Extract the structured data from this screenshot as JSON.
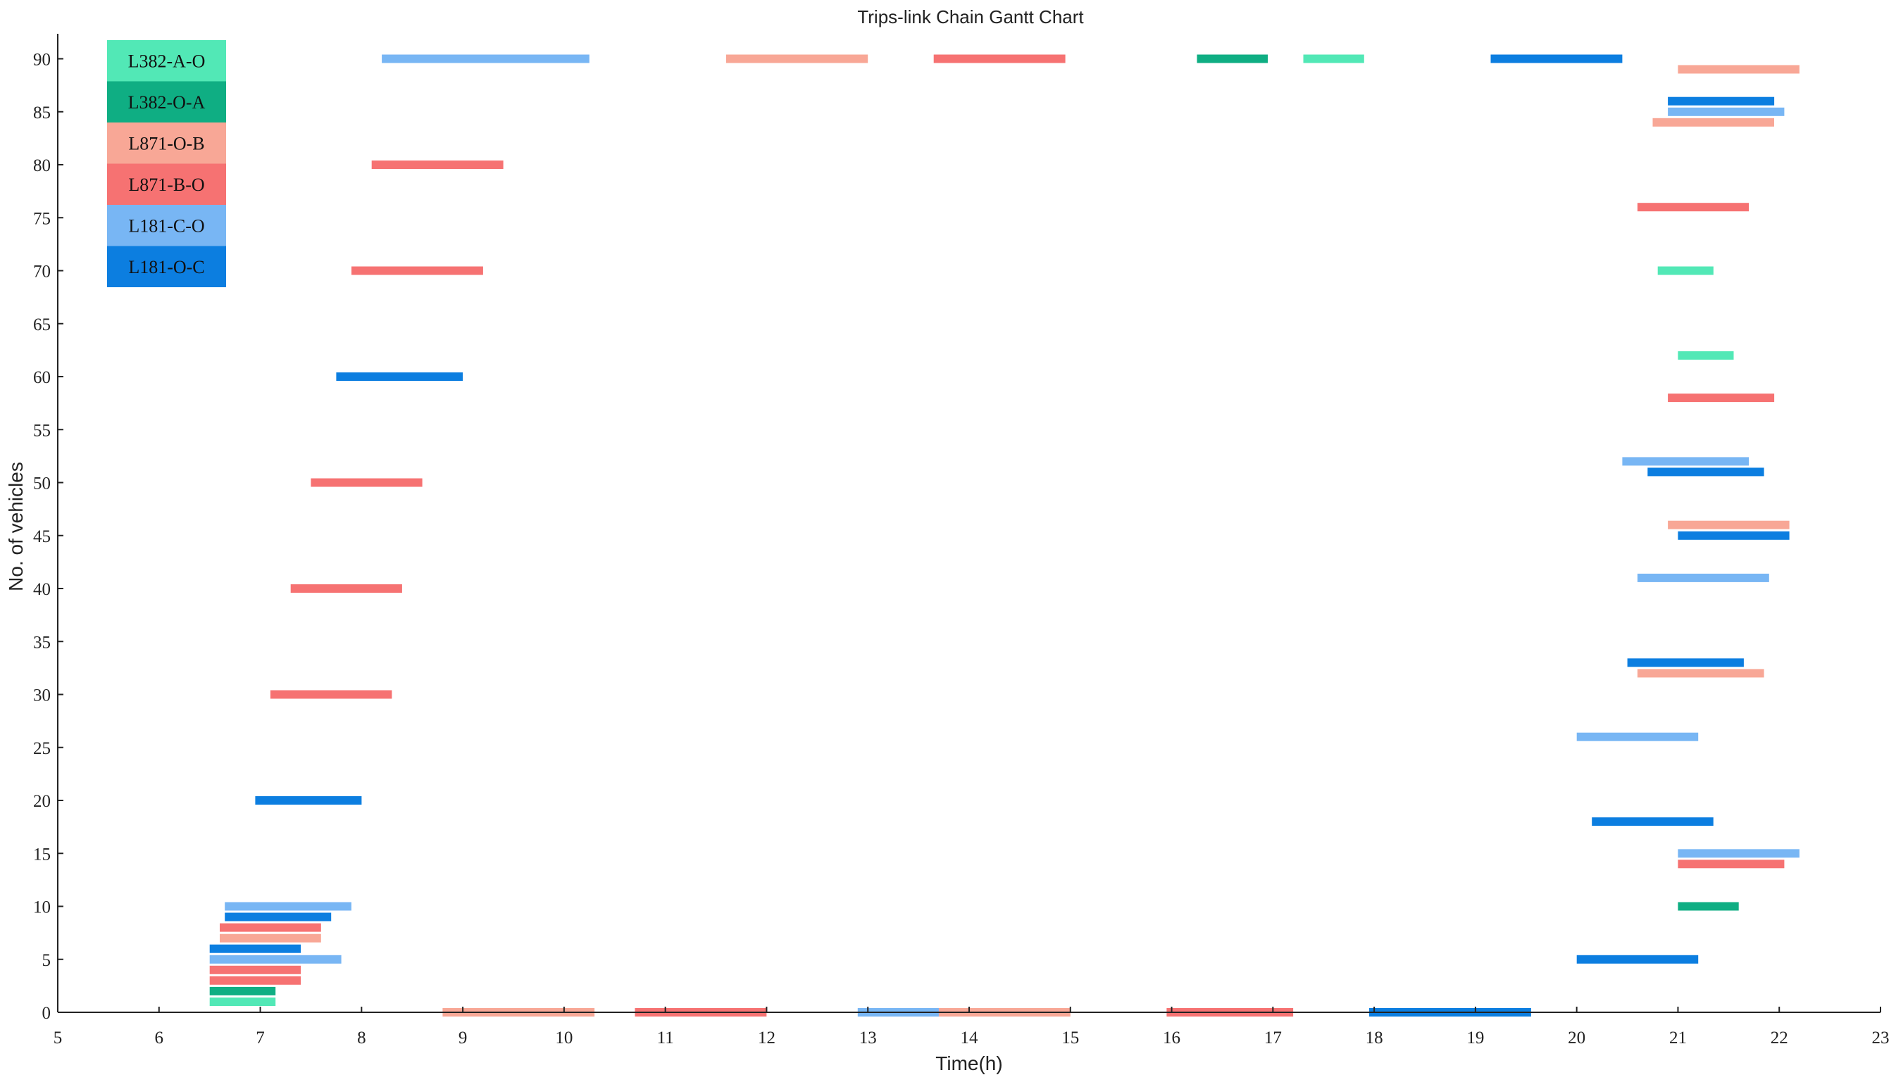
{
  "chart_data": {
    "type": "gantt",
    "title": "Trips-link Chain Gantt Chart",
    "xlabel": "Time(h)",
    "ylabel": "No. of vehicles",
    "xlim": [
      5,
      23
    ],
    "ylim": [
      0,
      92
    ],
    "xticks": [
      5,
      6,
      7,
      8,
      9,
      10,
      11,
      12,
      13,
      14,
      15,
      16,
      17,
      18,
      19,
      20,
      21,
      22,
      23
    ],
    "yticks": [
      0,
      5,
      10,
      15,
      20,
      25,
      30,
      35,
      40,
      45,
      50,
      55,
      60,
      65,
      70,
      75,
      80,
      85,
      90
    ],
    "grid": false,
    "legend_position": "top-left",
    "series": [
      {
        "name": "L382-A-O",
        "color": "#52E8B6"
      },
      {
        "name": "L382-O-A",
        "color": "#0FAE83"
      },
      {
        "name": "L871-O-B",
        "color": "#F8A796"
      },
      {
        "name": "L871-B-O",
        "color": "#F67272"
      },
      {
        "name": "L181-C-O",
        "color": "#78B6F4"
      },
      {
        "name": "L181-O-C",
        "color": "#0C7EE0"
      }
    ],
    "bars": [
      {
        "vehicle": 1,
        "series": "L382-A-O",
        "start": 6.5,
        "end": 7.15
      },
      {
        "vehicle": 2,
        "series": "L382-O-A",
        "start": 6.5,
        "end": 7.15
      },
      {
        "vehicle": 3,
        "series": "L871-B-O",
        "start": 6.5,
        "end": 7.4
      },
      {
        "vehicle": 4,
        "series": "L871-B-O",
        "start": 6.5,
        "end": 7.4
      },
      {
        "vehicle": 5,
        "series": "L181-C-O",
        "start": 6.5,
        "end": 7.8
      },
      {
        "vehicle": 6,
        "series": "L181-O-C",
        "start": 6.5,
        "end": 7.4
      },
      {
        "vehicle": 7,
        "series": "L871-O-B",
        "start": 6.6,
        "end": 7.6
      },
      {
        "vehicle": 8,
        "series": "L871-B-O",
        "start": 6.6,
        "end": 7.6
      },
      {
        "vehicle": 9,
        "series": "L181-O-C",
        "start": 6.65,
        "end": 7.7
      },
      {
        "vehicle": 10,
        "series": "L181-C-O",
        "start": 6.65,
        "end": 7.9
      },
      {
        "vehicle": 20,
        "series": "L181-O-C",
        "start": 6.95,
        "end": 8.0
      },
      {
        "vehicle": 30,
        "series": "L871-B-O",
        "start": 7.1,
        "end": 8.3
      },
      {
        "vehicle": 40,
        "series": "L871-B-O",
        "start": 7.3,
        "end": 8.4
      },
      {
        "vehicle": 50,
        "series": "L871-B-O",
        "start": 7.5,
        "end": 8.6
      },
      {
        "vehicle": 60,
        "series": "L181-O-C",
        "start": 7.75,
        "end": 9.0
      },
      {
        "vehicle": 70,
        "series": "L871-B-O",
        "start": 7.9,
        "end": 9.2
      },
      {
        "vehicle": 80,
        "series": "L871-B-O",
        "start": 8.1,
        "end": 9.4
      },
      {
        "vehicle": 90,
        "series": "L181-C-O",
        "start": 8.2,
        "end": 10.25
      },
      {
        "vehicle": 0,
        "series": "L871-O-B",
        "start": 8.8,
        "end": 10.3
      },
      {
        "vehicle": 0,
        "series": "L871-B-O",
        "start": 10.7,
        "end": 12.0
      },
      {
        "vehicle": 0,
        "series": "L181-C-O",
        "start": 12.9,
        "end": 14.1
      },
      {
        "vehicle": 0,
        "series": "L871-O-B",
        "start": 13.7,
        "end": 15.0
      },
      {
        "vehicle": 0,
        "series": "L871-B-O",
        "start": 15.95,
        "end": 17.2
      },
      {
        "vehicle": 0,
        "series": "L181-O-C",
        "start": 17.95,
        "end": 19.55
      },
      {
        "vehicle": 90,
        "series": "L871-O-B",
        "start": 11.6,
        "end": 13.0
      },
      {
        "vehicle": 90,
        "series": "L871-B-O",
        "start": 13.65,
        "end": 14.95
      },
      {
        "vehicle": 90,
        "series": "L382-O-A",
        "start": 16.25,
        "end": 16.95
      },
      {
        "vehicle": 90,
        "series": "L382-A-O",
        "start": 17.3,
        "end": 17.9
      },
      {
        "vehicle": 90,
        "series": "L181-O-C",
        "start": 19.15,
        "end": 20.45
      },
      {
        "vehicle": 89,
        "series": "L871-O-B",
        "start": 21.0,
        "end": 22.2
      },
      {
        "vehicle": 10,
        "series": "L382-O-A",
        "start": 21.0,
        "end": 21.6
      },
      {
        "vehicle": 86,
        "series": "L181-O-C",
        "start": 20.9,
        "end": 21.95
      },
      {
        "vehicle": 85,
        "series": "L181-C-O",
        "start": 20.9,
        "end": 22.05
      },
      {
        "vehicle": 84,
        "series": "L871-O-B",
        "start": 20.75,
        "end": 21.95
      },
      {
        "vehicle": 15,
        "series": "L181-C-O",
        "start": 21.0,
        "end": 22.2
      },
      {
        "vehicle": 14,
        "series": "L871-B-O",
        "start": 21.0,
        "end": 22.05
      },
      {
        "vehicle": 46,
        "series": "L871-O-B",
        "start": 20.9,
        "end": 22.1
      },
      {
        "vehicle": 45,
        "series": "L181-O-C",
        "start": 21.0,
        "end": 22.1
      },
      {
        "vehicle": 41,
        "series": "L181-C-O",
        "start": 20.6,
        "end": 21.9
      },
      {
        "vehicle": 52,
        "series": "L181-C-O",
        "start": 20.45,
        "end": 21.7
      },
      {
        "vehicle": 51,
        "series": "L181-O-C",
        "start": 20.7,
        "end": 21.85
      },
      {
        "vehicle": 58,
        "series": "L871-B-O",
        "start": 20.9,
        "end": 21.95
      },
      {
        "vehicle": 76,
        "series": "L871-B-O",
        "start": 20.6,
        "end": 21.7
      },
      {
        "vehicle": 70,
        "series": "L382-A-O",
        "start": 20.8,
        "end": 21.35
      },
      {
        "vehicle": 62,
        "series": "L382-A-O",
        "start": 21.0,
        "end": 21.55
      },
      {
        "vehicle": 33,
        "series": "L181-O-C",
        "start": 20.5,
        "end": 21.65
      },
      {
        "vehicle": 32,
        "series": "L871-O-B",
        "start": 20.6,
        "end": 21.85
      },
      {
        "vehicle": 18,
        "series": "L181-O-C",
        "start": 20.15,
        "end": 21.35
      },
      {
        "vehicle": 26,
        "series": "L181-C-O",
        "start": 20.0,
        "end": 21.2
      },
      {
        "vehicle": 5,
        "series": "L181-O-C",
        "start": 20.0,
        "end": 21.2
      }
    ]
  }
}
